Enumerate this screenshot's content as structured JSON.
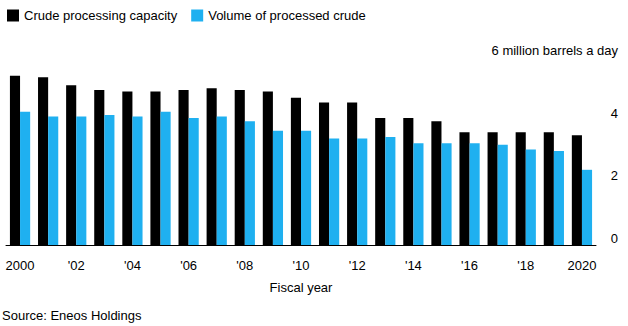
{
  "chart_data": {
    "type": "bar",
    "categories": [
      "2000",
      null,
      "'02",
      null,
      "'04",
      null,
      "'06",
      null,
      "'08",
      null,
      "'10",
      null,
      "'12",
      null,
      "'14",
      null,
      "'16",
      null,
      "'18",
      null,
      "2020"
    ],
    "series": [
      {
        "name": "Crude processing capacity",
        "color": "#000000",
        "values": [
          5.4,
          5.35,
          5.1,
          4.95,
          4.9,
          4.9,
          4.95,
          5.0,
          4.95,
          4.9,
          4.7,
          4.55,
          4.55,
          4.05,
          4.05,
          3.95,
          3.6,
          3.6,
          3.6,
          3.6,
          3.5
        ]
      },
      {
        "name": "Volume of processed crude",
        "color": "#1fb0f0",
        "values": [
          4.25,
          4.1,
          4.1,
          4.15,
          4.1,
          4.25,
          4.05,
          4.1,
          3.95,
          3.65,
          3.65,
          3.4,
          3.4,
          3.45,
          3.25,
          3.25,
          3.25,
          3.2,
          3.05,
          3.0,
          2.4
        ]
      }
    ],
    "ylim": [
      0,
      6
    ],
    "yticks": [
      0,
      2,
      4,
      {
        "value": 6,
        "label": "6 million barrels a day"
      }
    ],
    "x_label": "Fiscal year",
    "source": "Source: Eneos Holdings",
    "legend": "top-left",
    "grid": false
  }
}
